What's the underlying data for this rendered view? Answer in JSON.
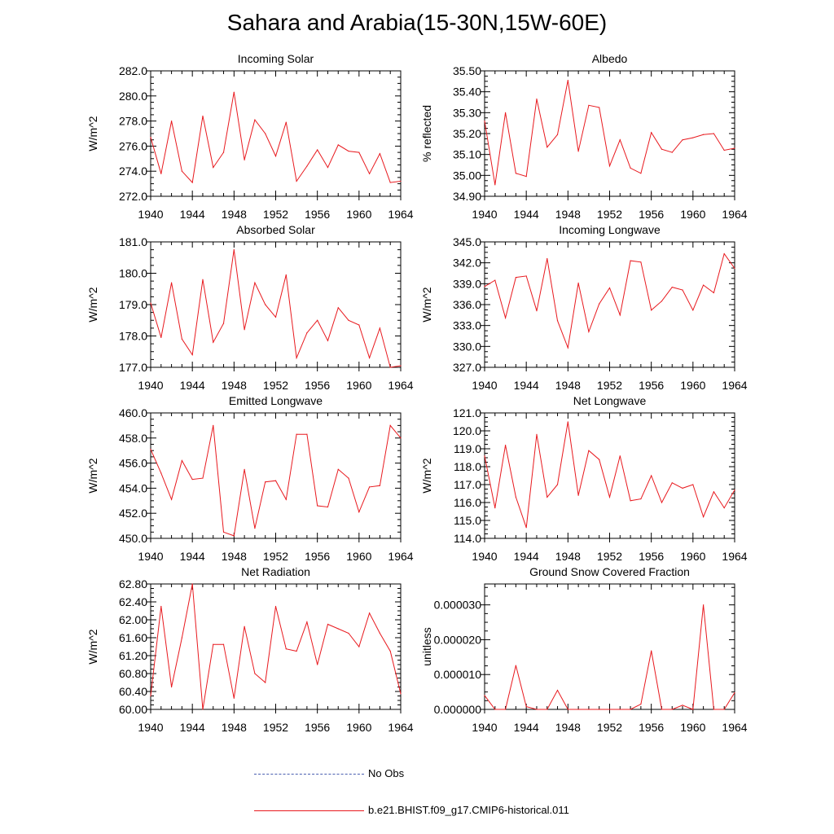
{
  "title": "Sahara and Arabia(15-30N,15W-60E)",
  "colors": {
    "model": "#e8191e",
    "obs": "#4a5fb0"
  },
  "legend": [
    {
      "label": "No Obs",
      "style": "dashed",
      "color": "#4a5fb0"
    },
    {
      "label": "b.e21.BHIST.f09_g17.CMIP6-historical.011",
      "style": "solid",
      "color": "#e8191e"
    }
  ],
  "chart_data": [
    {
      "type": "line",
      "title": "Incoming Solar",
      "ylabel": "W/m^2",
      "ylim": [
        272.0,
        282.0
      ],
      "xlim": [
        1940,
        1964
      ],
      "yticks": [
        "272.0",
        "274.0",
        "276.0",
        "278.0",
        "280.0",
        "282.0"
      ],
      "xticks": [
        "1940",
        "1944",
        "1948",
        "1952",
        "1956",
        "1960",
        "1964"
      ],
      "x": [
        1940,
        1941,
        1942,
        1943,
        1944,
        1945,
        1946,
        1947,
        1948,
        1949,
        1950,
        1951,
        1952,
        1953,
        1954,
        1955,
        1956,
        1957,
        1958,
        1959,
        1960,
        1961,
        1962,
        1963,
        1964
      ],
      "series": [
        {
          "name": "b.e21.BHIST.f09_g17.CMIP6-historical.011",
          "values": [
            276.7,
            273.8,
            278.0,
            274.0,
            273.1,
            278.4,
            274.3,
            275.5,
            280.3,
            274.9,
            278.1,
            277.0,
            275.2,
            277.9,
            273.2,
            274.4,
            275.7,
            274.3,
            276.1,
            275.6,
            275.5,
            273.8,
            275.4,
            273.1,
            273.2
          ]
        }
      ]
    },
    {
      "type": "line",
      "title": "Albedo",
      "ylabel": "% reflected",
      "ylim": [
        34.9,
        35.5
      ],
      "xlim": [
        1940,
        1964
      ],
      "yticks": [
        "34.90",
        "35.00",
        "35.10",
        "35.20",
        "35.30",
        "35.40",
        "35.50"
      ],
      "xticks": [
        "1940",
        "1944",
        "1948",
        "1952",
        "1956",
        "1960",
        "1964"
      ],
      "x": [
        1940,
        1941,
        1942,
        1943,
        1944,
        1945,
        1946,
        1947,
        1948,
        1949,
        1950,
        1951,
        1952,
        1953,
        1954,
        1955,
        1956,
        1957,
        1958,
        1959,
        1960,
        1961,
        1962,
        1963,
        1964
      ],
      "series": [
        {
          "name": "b.e21.BHIST.f09_g17.CMIP6-historical.011",
          "values": [
            35.26,
            34.955,
            35.3,
            35.01,
            34.995,
            35.365,
            35.135,
            35.195,
            35.455,
            35.115,
            35.335,
            35.325,
            35.045,
            35.17,
            35.035,
            35.01,
            35.205,
            35.125,
            35.11,
            35.17,
            35.18,
            35.195,
            35.2,
            35.12,
            35.13
          ]
        }
      ]
    },
    {
      "type": "line",
      "title": "Absorbed Solar",
      "ylabel": "W/m^2",
      "ylim": [
        177.0,
        181.0
      ],
      "xlim": [
        1940,
        1964
      ],
      "yticks": [
        "177.0",
        "178.0",
        "179.0",
        "180.0",
        "181.0"
      ],
      "xticks": [
        "1940",
        "1944",
        "1948",
        "1952",
        "1956",
        "1960",
        "1964"
      ],
      "x": [
        1940,
        1941,
        1942,
        1943,
        1944,
        1945,
        1946,
        1947,
        1948,
        1949,
        1950,
        1951,
        1952,
        1953,
        1954,
        1955,
        1956,
        1957,
        1958,
        1959,
        1960,
        1961,
        1962,
        1963,
        1964
      ],
      "series": [
        {
          "name": "b.e21.BHIST.f09_g17.CMIP6-historical.011",
          "values": [
            179.05,
            177.95,
            179.7,
            177.9,
            177.4,
            179.8,
            177.8,
            178.4,
            180.75,
            178.2,
            179.7,
            179.0,
            178.6,
            179.95,
            177.3,
            178.1,
            178.5,
            177.85,
            178.9,
            178.5,
            178.35,
            177.3,
            178.25,
            177.0,
            177.05
          ]
        }
      ]
    },
    {
      "type": "line",
      "title": "Incoming Longwave",
      "ylabel": "W/m^2",
      "ylim": [
        327.0,
        345.0
      ],
      "xlim": [
        1940,
        1964
      ],
      "yticks": [
        "327.0",
        "330.0",
        "333.0",
        "336.0",
        "339.0",
        "342.0",
        "345.0"
      ],
      "xticks": [
        "1940",
        "1944",
        "1948",
        "1952",
        "1956",
        "1960",
        "1964"
      ],
      "x": [
        1940,
        1941,
        1942,
        1943,
        1944,
        1945,
        1946,
        1947,
        1948,
        1949,
        1950,
        1951,
        1952,
        1953,
        1954,
        1955,
        1956,
        1957,
        1958,
        1959,
        1960,
        1961,
        1962,
        1963,
        1964
      ],
      "series": [
        {
          "name": "b.e21.BHIST.f09_g17.CMIP6-historical.011",
          "values": [
            338.6,
            339.5,
            334.1,
            339.9,
            340.1,
            335.1,
            342.6,
            333.7,
            329.8,
            339.1,
            332.1,
            336.1,
            338.4,
            334.5,
            342.3,
            342.1,
            335.2,
            336.5,
            338.5,
            338.1,
            335.2,
            338.8,
            337.7,
            343.3,
            341.2
          ]
        }
      ]
    },
    {
      "type": "line",
      "title": "Emitted Longwave",
      "ylabel": "W/m^2",
      "ylim": [
        450.0,
        460.0
      ],
      "xlim": [
        1940,
        1964
      ],
      "yticks": [
        "450.0",
        "452.0",
        "454.0",
        "456.0",
        "458.0",
        "460.0"
      ],
      "xticks": [
        "1940",
        "1944",
        "1948",
        "1952",
        "1956",
        "1960",
        "1964"
      ],
      "x": [
        1940,
        1941,
        1942,
        1943,
        1944,
        1945,
        1946,
        1947,
        1948,
        1949,
        1950,
        1951,
        1952,
        1953,
        1954,
        1955,
        1956,
        1957,
        1958,
        1959,
        1960,
        1961,
        1962,
        1963,
        1964
      ],
      "series": [
        {
          "name": "b.e21.BHIST.f09_g17.CMIP6-historical.011",
          "values": [
            457.1,
            455.2,
            453.1,
            456.2,
            454.7,
            454.8,
            459.0,
            450.5,
            450.2,
            455.5,
            450.8,
            454.5,
            454.6,
            453.1,
            458.3,
            458.3,
            452.6,
            452.5,
            455.5,
            454.8,
            452.1,
            454.1,
            454.2,
            459.0,
            458.0
          ]
        }
      ]
    },
    {
      "type": "line",
      "title": "Net Longwave",
      "ylabel": "W/m^2",
      "ylim": [
        114.0,
        121.0
      ],
      "xlim": [
        1940,
        1964
      ],
      "yticks": [
        "114.0",
        "115.0",
        "116.0",
        "117.0",
        "118.0",
        "119.0",
        "120.0",
        "121.0"
      ],
      "xticks": [
        "1940",
        "1944",
        "1948",
        "1952",
        "1956",
        "1960",
        "1964"
      ],
      "x": [
        1940,
        1941,
        1942,
        1943,
        1944,
        1945,
        1946,
        1947,
        1948,
        1949,
        1950,
        1951,
        1952,
        1953,
        1954,
        1955,
        1956,
        1957,
        1958,
        1959,
        1960,
        1961,
        1962,
        1963,
        1964
      ],
      "series": [
        {
          "name": "b.e21.BHIST.f09_g17.CMIP6-historical.011",
          "values": [
            118.6,
            115.7,
            119.2,
            116.3,
            114.6,
            119.8,
            116.3,
            117.0,
            120.5,
            116.4,
            118.9,
            118.4,
            116.3,
            118.6,
            116.1,
            116.2,
            117.5,
            116.0,
            117.1,
            116.8,
            117.0,
            115.2,
            116.6,
            115.7,
            116.7
          ]
        }
      ]
    },
    {
      "type": "line",
      "title": "Net Radiation",
      "ylabel": "W/m^2",
      "ylim": [
        60.0,
        62.8
      ],
      "xlim": [
        1940,
        1964
      ],
      "yticks": [
        "60.00",
        "60.40",
        "60.80",
        "61.20",
        "61.60",
        "62.00",
        "62.40",
        "62.80"
      ],
      "xticks": [
        "1940",
        "1944",
        "1948",
        "1952",
        "1956",
        "1960",
        "1964"
      ],
      "x": [
        1940,
        1941,
        1942,
        1943,
        1944,
        1945,
        1946,
        1947,
        1948,
        1949,
        1950,
        1951,
        1952,
        1953,
        1954,
        1955,
        1956,
        1957,
        1958,
        1959,
        1960,
        1961,
        1962,
        1963,
        1964
      ],
      "series": [
        {
          "name": "b.e21.BHIST.f09_g17.CMIP6-historical.011",
          "values": [
            60.3,
            62.3,
            60.5,
            61.6,
            62.8,
            60.0,
            61.45,
            61.45,
            60.25,
            61.85,
            60.8,
            60.6,
            62.3,
            61.35,
            61.3,
            61.95,
            61.0,
            61.9,
            61.8,
            61.7,
            61.4,
            62.15,
            61.7,
            61.3,
            60.35
          ]
        }
      ]
    },
    {
      "type": "line",
      "title": "Ground Snow Covered Fraction",
      "ylabel": "unitless",
      "ylim": [
        0.0,
        3.6e-05
      ],
      "xlim": [
        1940,
        1964
      ],
      "yticks": [
        "0.000000",
        "0.000010",
        "0.000020",
        "0.000030"
      ],
      "ytick_values": [
        0.0,
        1e-05,
        2e-05,
        3e-05
      ],
      "xticks": [
        "1940",
        "1944",
        "1948",
        "1952",
        "1956",
        "1960",
        "1964"
      ],
      "x": [
        1940,
        1941,
        1942,
        1943,
        1944,
        1945,
        1946,
        1947,
        1948,
        1949,
        1950,
        1951,
        1952,
        1953,
        1954,
        1955,
        1956,
        1957,
        1958,
        1959,
        1960,
        1961,
        1962,
        1963,
        1964
      ],
      "series": [
        {
          "name": "b.e21.BHIST.f09_g17.CMIP6-historical.011",
          "values": [
            4e-06,
            0.0,
            0.0,
            1.26e-05,
            8e-07,
            0.0,
            0.0,
            5.5e-06,
            0.0,
            0.0,
            0.0,
            0.0,
            0.0,
            0.0,
            0.0,
            1.5e-06,
            1.68e-05,
            0.0,
            0.0,
            1.2e-06,
            0.0,
            3e-05,
            0.0,
            0.0,
            4.8e-06
          ]
        }
      ]
    }
  ]
}
